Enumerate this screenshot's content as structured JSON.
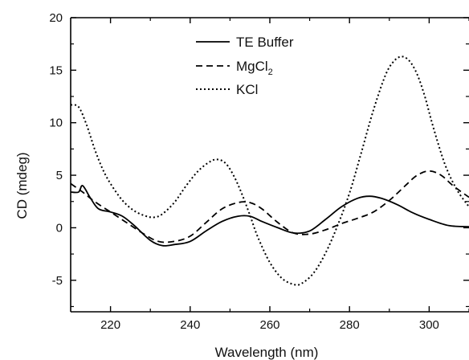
{
  "chart_data": {
    "type": "line",
    "title": "",
    "xlabel": "Wavelength (nm)",
    "ylabel": "CD (mdeg)",
    "xlim": [
      210,
      310
    ],
    "ylim": [
      -8,
      20
    ],
    "xticks": [
      220,
      240,
      260,
      280,
      300
    ],
    "yticks": [
      -5,
      0,
      5,
      10,
      15,
      20
    ],
    "grid": false,
    "legend_position": "top-center",
    "legend": [
      {
        "label": "TE Buffer",
        "style": "solid"
      },
      {
        "label": "MgCl",
        "subscript": "2",
        "style": "dashed"
      },
      {
        "label": "KCl",
        "style": "dotted"
      }
    ],
    "series": [
      {
        "name": "TE Buffer",
        "style": "solid",
        "x": [
          210,
          212,
          213,
          215,
          217,
          220,
          223,
          226,
          230,
          233,
          236,
          240,
          244,
          248,
          252,
          255,
          258,
          262,
          266,
          270,
          274,
          278,
          282,
          285,
          288,
          292,
          296,
          300,
          305,
          310
        ],
        "y": [
          3.4,
          3.4,
          4.0,
          2.8,
          1.8,
          1.5,
          1.1,
          0.2,
          -1.2,
          -1.7,
          -1.6,
          -1.3,
          -0.3,
          0.6,
          1.1,
          1.1,
          0.6,
          0.0,
          -0.5,
          -0.3,
          0.8,
          2.0,
          2.8,
          3.0,
          2.8,
          2.2,
          1.4,
          0.8,
          0.2,
          0.1
        ]
      },
      {
        "name": "MgCl2",
        "style": "dashed",
        "x": [
          210,
          213,
          216,
          220,
          224,
          228,
          232,
          236,
          240,
          244,
          248,
          252,
          255,
          258,
          262,
          266,
          270,
          274,
          278,
          282,
          286,
          290,
          294,
          297,
          300,
          303,
          306,
          310
        ],
        "y": [
          4.2,
          3.4,
          2.5,
          1.5,
          0.5,
          -0.5,
          -1.3,
          -1.3,
          -0.8,
          0.5,
          1.8,
          2.4,
          2.4,
          1.8,
          0.5,
          -0.5,
          -0.6,
          -0.2,
          0.4,
          0.9,
          1.5,
          2.6,
          4.0,
          5.0,
          5.4,
          5.0,
          4.0,
          2.9
        ]
      },
      {
        "name": "KCl",
        "style": "dotted",
        "x": [
          210,
          212,
          214,
          216,
          218,
          220,
          223,
          226,
          229,
          231,
          233,
          236,
          239,
          242,
          245,
          247,
          249,
          251,
          253,
          255,
          257,
          260,
          263,
          266,
          268,
          271,
          274,
          277,
          280,
          283,
          286,
          289,
          291,
          293,
          295,
          297,
          299,
          301,
          304,
          307,
          310
        ],
        "y": [
          11.7,
          11.5,
          9.8,
          7.5,
          5.6,
          4.2,
          2.6,
          1.6,
          1.1,
          1.0,
          1.3,
          2.4,
          4.0,
          5.4,
          6.3,
          6.5,
          6.1,
          4.9,
          3.2,
          1.2,
          -0.9,
          -3.3,
          -4.8,
          -5.4,
          -5.3,
          -4.3,
          -2.4,
          0.2,
          3.3,
          7.2,
          11.2,
          14.5,
          15.8,
          16.3,
          15.9,
          14.6,
          12.4,
          9.6,
          6.0,
          3.6,
          2.0
        ]
      }
    ]
  }
}
